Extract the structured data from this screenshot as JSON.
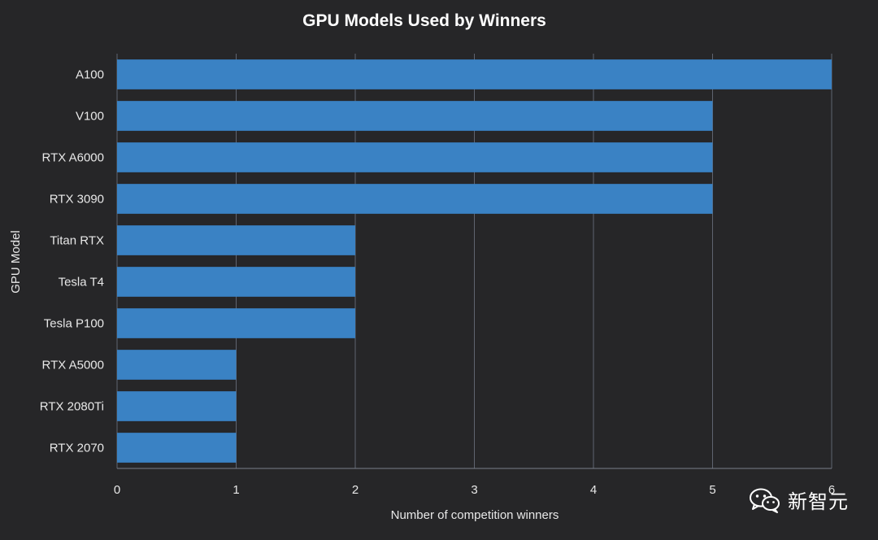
{
  "colors": {
    "bar": "#3a82c4",
    "background": "#262628",
    "grid": "#5f6470"
  },
  "watermark": {
    "text": "新智元",
    "icon": "wechat-icon"
  },
  "chart_data": {
    "type": "bar",
    "orientation": "horizontal",
    "title": "GPU Models Used by Winners",
    "xlabel": "Number of competition winners",
    "ylabel": "GPU Model",
    "xlim": [
      0,
      6
    ],
    "xticks": [
      0,
      1,
      2,
      3,
      4,
      5,
      6
    ],
    "grid": true,
    "categories": [
      "A100",
      "V100",
      "RTX A6000",
      "RTX 3090",
      "Titan RTX",
      "Tesla T4",
      "Tesla P100",
      "RTX A5000",
      "RTX 2080Ti",
      "RTX 2070"
    ],
    "values": [
      6,
      5,
      5,
      5,
      2,
      2,
      2,
      1,
      1,
      1
    ]
  }
}
